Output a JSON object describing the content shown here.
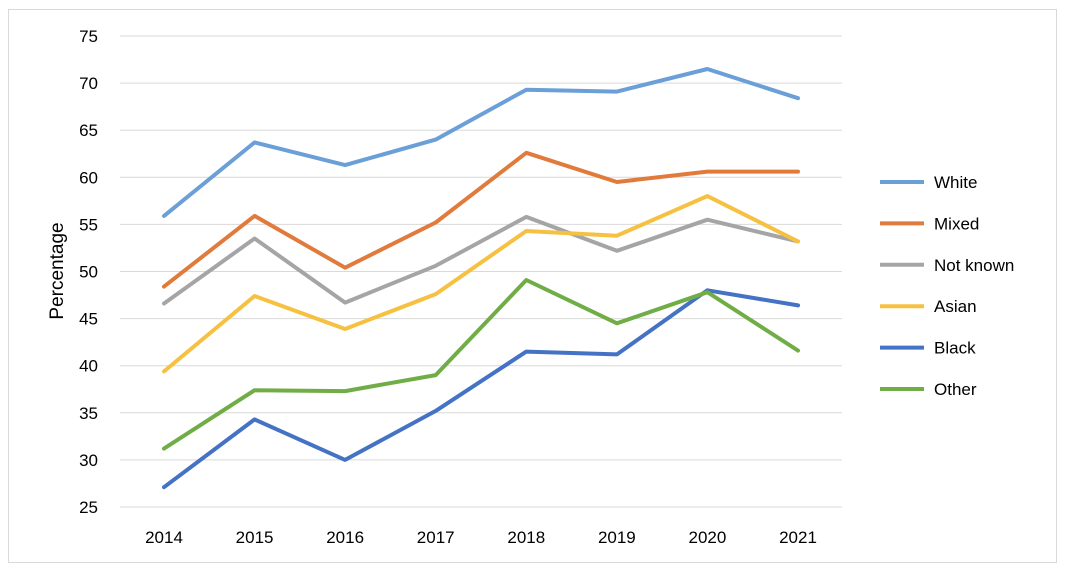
{
  "chart_data": {
    "type": "line",
    "title": "",
    "xlabel": "",
    "ylabel": "Percentage",
    "ylim": [
      25,
      75
    ],
    "yticks": [
      25,
      30,
      35,
      40,
      45,
      50,
      55,
      60,
      65,
      70,
      75
    ],
    "grid": "horizontal",
    "legend": "right",
    "x": [
      "2014",
      "2015",
      "2016",
      "2017",
      "2018",
      "2019",
      "2020",
      "2021"
    ],
    "series": [
      {
        "name": "White",
        "color": "#6a9fd8",
        "values": [
          55.9,
          63.7,
          61.3,
          64.0,
          69.3,
          69.1,
          71.5,
          68.4
        ]
      },
      {
        "name": "Mixed",
        "color": "#e07b3c",
        "values": [
          48.4,
          55.9,
          50.4,
          55.2,
          62.6,
          59.5,
          60.6,
          60.6
        ]
      },
      {
        "name": "Not known",
        "color": "#a5a5a5",
        "values": [
          46.6,
          53.5,
          46.7,
          50.6,
          55.8,
          52.2,
          55.5,
          53.2
        ]
      },
      {
        "name": "Asian",
        "color": "#f6c141",
        "values": [
          39.4,
          47.4,
          43.9,
          47.6,
          54.3,
          53.8,
          58.0,
          53.2
        ]
      },
      {
        "name": "Black",
        "color": "#4472c4",
        "values": [
          27.1,
          34.3,
          30.0,
          35.2,
          41.5,
          41.2,
          48.0,
          46.4
        ]
      },
      {
        "name": "Other",
        "color": "#70ad47",
        "values": [
          31.2,
          37.4,
          37.3,
          39.0,
          49.1,
          44.5,
          47.8,
          41.6
        ]
      }
    ]
  }
}
